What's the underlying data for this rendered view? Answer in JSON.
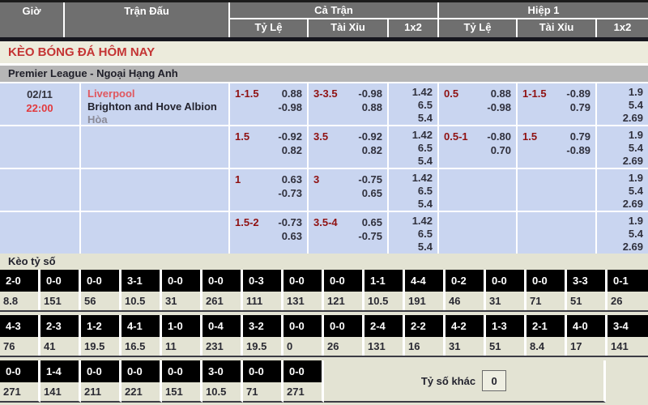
{
  "colors": {
    "accent_red": "#c43434",
    "team_link_red": "#e0565e",
    "handicap_red": "#8f1111",
    "row_bg_blue": "#c9d5f0",
    "header_gray": "#6f6f6f",
    "league_bar_gray": "#b6b6b6",
    "score_section_bg": "#e3e3d3",
    "score_box_bg": "#000000"
  },
  "table_header": {
    "gio": "Giờ",
    "tran_dau": "Trận Đấu",
    "ca_tran": "Cả Trận",
    "hiep_1": "Hiệp 1",
    "ty_le": "Tỷ Lệ",
    "tai_xiu": "Tài Xỉu",
    "one_x_two": "1x2"
  },
  "page_title": "KÈO BÓNG ĐÁ HÔM NAY",
  "league_header": "Premier League - Ngoại Hạng Anh",
  "match": {
    "date": "02/11",
    "time": "22:00",
    "home": "Liverpool",
    "away": "Brighton and Hove Albion",
    "draw_label": "Hòa"
  },
  "odds_rows": [
    {
      "ft_handicap": {
        "line": "1-1.5",
        "over": "0.88",
        "under": "-0.98"
      },
      "ft_total": {
        "line": "3-3.5",
        "over": "-0.98",
        "under": "0.88"
      },
      "ft_1x2": [
        "1.42",
        "6.5",
        "5.4"
      ],
      "h1_handicap": {
        "line": "0.5",
        "over": "0.88",
        "under": "-0.98"
      },
      "h1_total": {
        "line": "1-1.5",
        "over": "-0.89",
        "under": "0.79"
      },
      "h1_1x2": [
        "1.9",
        "5.4",
        "2.69"
      ]
    },
    {
      "ft_handicap": {
        "line": "1.5",
        "over": "-0.92",
        "under": "0.82"
      },
      "ft_total": {
        "line": "3.5",
        "over": "-0.92",
        "under": "0.82"
      },
      "ft_1x2": [
        "1.42",
        "6.5",
        "5.4"
      ],
      "h1_handicap": {
        "line": "0.5-1",
        "over": "-0.80",
        "under": "0.70"
      },
      "h1_total": {
        "line": "1.5",
        "over": "0.79",
        "under": "-0.89"
      },
      "h1_1x2": [
        "1.9",
        "5.4",
        "2.69"
      ]
    },
    {
      "ft_handicap": {
        "line": "1",
        "over": "0.63",
        "under": "-0.73"
      },
      "ft_total": {
        "line": "3",
        "over": "-0.75",
        "under": "0.65"
      },
      "ft_1x2": [
        "1.42",
        "6.5",
        "5.4"
      ],
      "h1_handicap": null,
      "h1_total": null,
      "h1_1x2": [
        "1.9",
        "5.4",
        "2.69"
      ]
    },
    {
      "ft_handicap": {
        "line": "1.5-2",
        "over": "-0.73",
        "under": "0.63"
      },
      "ft_total": {
        "line": "3.5-4",
        "over": "0.65",
        "under": "-0.75"
      },
      "ft_1x2": [
        "1.42",
        "6.5",
        "5.4"
      ],
      "h1_handicap": null,
      "h1_total": null,
      "h1_1x2": [
        "1.9",
        "5.4",
        "2.69"
      ]
    }
  ],
  "score_section": {
    "title": "Kèo tỷ số",
    "other_score_label": "Tỷ số khác",
    "other_score_value": "0",
    "rows": [
      [
        {
          "score": "2-0",
          "odds": "8.8"
        },
        {
          "score": "0-0",
          "odds": "151"
        },
        {
          "score": "0-0",
          "odds": "56"
        },
        {
          "score": "3-1",
          "odds": "10.5"
        },
        {
          "score": "0-0",
          "odds": "31"
        },
        {
          "score": "0-0",
          "odds": "261"
        },
        {
          "score": "0-3",
          "odds": "111"
        },
        {
          "score": "0-0",
          "odds": "131"
        },
        {
          "score": "0-0",
          "odds": "121"
        },
        {
          "score": "1-1",
          "odds": "10.5"
        },
        {
          "score": "4-4",
          "odds": "191"
        },
        {
          "score": "0-2",
          "odds": "46"
        },
        {
          "score": "0-0",
          "odds": "31"
        },
        {
          "score": "0-0",
          "odds": "71"
        },
        {
          "score": "3-3",
          "odds": "51"
        },
        {
          "score": "0-1",
          "odds": "26"
        }
      ],
      [
        {
          "score": "4-3",
          "odds": "76"
        },
        {
          "score": "2-3",
          "odds": "41"
        },
        {
          "score": "1-2",
          "odds": "19.5"
        },
        {
          "score": "4-1",
          "odds": "16.5"
        },
        {
          "score": "1-0",
          "odds": "11"
        },
        {
          "score": "0-4",
          "odds": "231"
        },
        {
          "score": "3-2",
          "odds": "19.5"
        },
        {
          "score": "0-0",
          "odds": "0"
        },
        {
          "score": "0-0",
          "odds": "26"
        },
        {
          "score": "2-4",
          "odds": "131"
        },
        {
          "score": "2-2",
          "odds": "16"
        },
        {
          "score": "4-2",
          "odds": "31"
        },
        {
          "score": "1-3",
          "odds": "51"
        },
        {
          "score": "2-1",
          "odds": "8.4"
        },
        {
          "score": "4-0",
          "odds": "17"
        },
        {
          "score": "3-4",
          "odds": "141"
        }
      ],
      [
        {
          "score": "0-0",
          "odds": "271"
        },
        {
          "score": "1-4",
          "odds": "141"
        },
        {
          "score": "0-0",
          "odds": "211"
        },
        {
          "score": "0-0",
          "odds": "221"
        },
        {
          "score": "0-0",
          "odds": "151"
        },
        {
          "score": "3-0",
          "odds": "10.5"
        },
        {
          "score": "0-0",
          "odds": "71"
        },
        {
          "score": "0-0",
          "odds": "271"
        }
      ]
    ]
  }
}
